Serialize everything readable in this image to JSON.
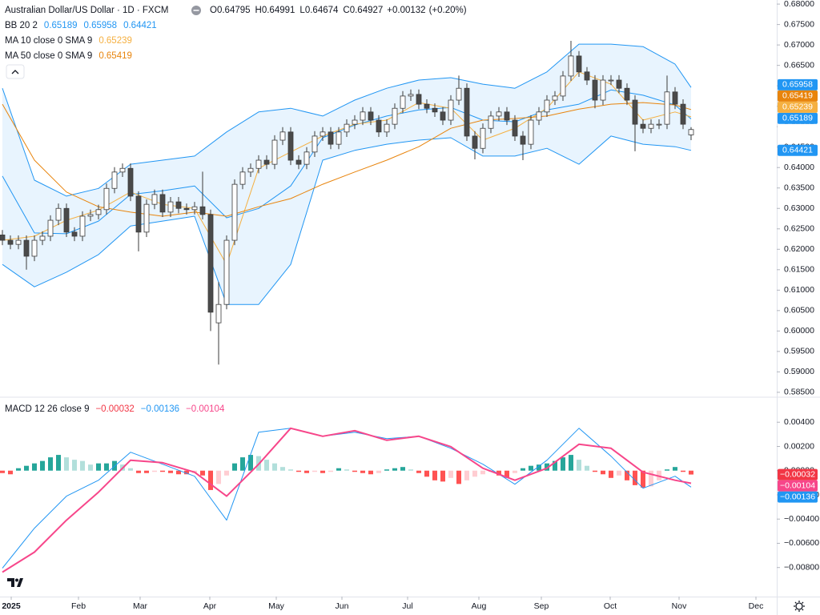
{
  "chart_data": [
    {
      "type": "candlestick",
      "title": "Australian Dollar/US Dollar · 1D · FXCM",
      "quote": [
        {
          "name": "O",
          "value": 0.64795
        },
        {
          "name": "H",
          "value": 0.64991
        },
        {
          "name": "L",
          "value": 0.64674
        },
        {
          "name": "C",
          "value": 0.64927
        }
      ],
      "change": {
        "value": 0.00132,
        "label": "+0.00132"
      },
      "change_pct": {
        "value": 0.2,
        "label": "(+0.20%)"
      },
      "up_color": "#ffffff",
      "down_color": "#4a4a4a",
      "wick_color": "#3b3b3b",
      "open": [
        0.6235,
        0.6222,
        0.6212,
        0.6222,
        0.6183,
        0.6222,
        0.6232,
        0.6271,
        0.63,
        0.6242,
        0.6232,
        0.6281,
        0.6285,
        0.6297,
        0.6349,
        0.6389,
        0.6398,
        0.633,
        0.6242,
        0.631,
        0.6334,
        0.6291,
        0.6316,
        0.63,
        0.6297,
        0.6304,
        0.6285,
        0.602,
        0.6065,
        0.6222,
        0.6359,
        0.6389,
        0.6398,
        0.6418,
        0.6408,
        0.6467,
        0.6487,
        0.6418,
        0.6408,
        0.6438,
        0.6477,
        0.6487,
        0.6457,
        0.6487,
        0.6506,
        0.6516,
        0.6536,
        0.6516,
        0.6487,
        0.6506,
        0.6545,
        0.6575,
        0.6579,
        0.6555,
        0.6545,
        0.6536,
        0.6516,
        0.6565,
        0.6594,
        0.6477,
        0.6447,
        0.6496,
        0.6526,
        0.6536,
        0.6516,
        0.6477,
        0.6457,
        0.6516,
        0.6536,
        0.6565,
        0.6575,
        0.6624,
        0.6673,
        0.6634,
        0.6614,
        0.6565,
        0.6614,
        0.6614,
        0.6594,
        0.6565,
        0.6506,
        0.6496,
        0.6506,
        0.6506,
        0.6585,
        0.6555,
        0.648
      ],
      "high": [
        0.6247,
        0.6234,
        0.6234,
        0.6234,
        0.6234,
        0.6244,
        0.6283,
        0.6312,
        0.6312,
        0.6254,
        0.6293,
        0.6297,
        0.6309,
        0.6361,
        0.6401,
        0.641,
        0.641,
        0.6342,
        0.6322,
        0.6346,
        0.6346,
        0.6328,
        0.6328,
        0.6312,
        0.6316,
        0.639,
        0.6297,
        0.612,
        0.6234,
        0.6371,
        0.6401,
        0.641,
        0.643,
        0.643,
        0.6479,
        0.6499,
        0.6499,
        0.643,
        0.645,
        0.6489,
        0.6499,
        0.6499,
        0.6499,
        0.6518,
        0.6528,
        0.6548,
        0.6548,
        0.6528,
        0.6518,
        0.6557,
        0.6587,
        0.6591,
        0.6591,
        0.6567,
        0.6557,
        0.6548,
        0.6577,
        0.6625,
        0.6606,
        0.6489,
        0.6508,
        0.6538,
        0.6548,
        0.6548,
        0.6528,
        0.6489,
        0.6528,
        0.6548,
        0.6577,
        0.6587,
        0.6636,
        0.671,
        0.6685,
        0.6646,
        0.6626,
        0.6626,
        0.6626,
        0.6626,
        0.6606,
        0.6577,
        0.6518,
        0.6518,
        0.6518,
        0.6625,
        0.6597,
        0.6567,
        0.6499
      ],
      "low": [
        0.621,
        0.62,
        0.62,
        0.615,
        0.6171,
        0.621,
        0.622,
        0.6259,
        0.623,
        0.622,
        0.622,
        0.6269,
        0.6273,
        0.6285,
        0.6337,
        0.6377,
        0.6318,
        0.6195,
        0.623,
        0.6298,
        0.6279,
        0.6279,
        0.6288,
        0.6285,
        0.6285,
        0.6273,
        0.6,
        0.5918,
        0.6053,
        0.621,
        0.6347,
        0.6377,
        0.6386,
        0.6396,
        0.6396,
        0.6455,
        0.6406,
        0.6396,
        0.6396,
        0.6426,
        0.6465,
        0.6445,
        0.6445,
        0.6475,
        0.6494,
        0.6504,
        0.6504,
        0.6475,
        0.6475,
        0.6494,
        0.6533,
        0.6563,
        0.6543,
        0.6533,
        0.6524,
        0.6504,
        0.6504,
        0.6553,
        0.6465,
        0.642,
        0.6435,
        0.6484,
        0.6514,
        0.6504,
        0.6465,
        0.6418,
        0.6445,
        0.6504,
        0.6524,
        0.6553,
        0.6563,
        0.6612,
        0.6622,
        0.6602,
        0.6545,
        0.6553,
        0.6602,
        0.6582,
        0.6553,
        0.644,
        0.6484,
        0.6484,
        0.6494,
        0.6494,
        0.6543,
        0.6494,
        0.6467
      ],
      "close": [
        0.6222,
        0.6212,
        0.6222,
        0.6183,
        0.6222,
        0.6232,
        0.6271,
        0.63,
        0.6242,
        0.6232,
        0.6281,
        0.6285,
        0.6297,
        0.6349,
        0.6389,
        0.6398,
        0.633,
        0.6242,
        0.631,
        0.6334,
        0.6291,
        0.6316,
        0.63,
        0.6297,
        0.6304,
        0.6285,
        0.6046,
        0.6065,
        0.6222,
        0.6359,
        0.6389,
        0.6398,
        0.6418,
        0.6408,
        0.6467,
        0.6487,
        0.6418,
        0.6408,
        0.6438,
        0.6477,
        0.6487,
        0.6457,
        0.6487,
        0.6506,
        0.6516,
        0.6536,
        0.6516,
        0.6487,
        0.6506,
        0.6545,
        0.6575,
        0.6579,
        0.6555,
        0.6545,
        0.6536,
        0.6516,
        0.6565,
        0.6594,
        0.6477,
        0.6447,
        0.6496,
        0.6526,
        0.6536,
        0.6516,
        0.6477,
        0.6457,
        0.6516,
        0.6536,
        0.6565,
        0.6575,
        0.6624,
        0.6673,
        0.6634,
        0.6614,
        0.6565,
        0.6614,
        0.6614,
        0.6594,
        0.6565,
        0.6506,
        0.6496,
        0.6506,
        0.6506,
        0.6585,
        0.6555,
        0.6506,
        0.6493
      ],
      "line_x": [
        0,
        4,
        8,
        12,
        16,
        20,
        24,
        28,
        32,
        36,
        40,
        44,
        48,
        52,
        56,
        60,
        64,
        68,
        72,
        76,
        80,
        84,
        86
      ],
      "studies": [
        {
          "label": "BB 20 2",
          "fill": "#2196f3",
          "lines": [
            {
              "color": "#2196f3",
              "values": [
                0.6379,
                0.624,
                0.6238,
                0.6269,
                0.6334,
                0.6343,
                0.6355,
                0.6277,
                0.63,
                0.6355,
                0.6473,
                0.6504,
                0.6526,
                0.6541,
                0.6547,
                0.6516,
                0.6512,
                0.6541,
                0.6555,
                0.659,
                0.6577,
                0.6553,
                0.6519
              ]
            },
            {
              "color": "#2196f3",
              "values": [
                0.6594,
                0.6369,
                0.633,
                0.6349,
                0.6408,
                0.6418,
                0.6428,
                0.6487,
                0.6536,
                0.6545,
                0.6526,
                0.6565,
                0.6594,
                0.6614,
                0.662,
                0.6604,
                0.6594,
                0.6634,
                0.6702,
                0.6702,
                0.6696,
                0.6653,
                0.6596
              ]
            },
            {
              "color": "#2196f3",
              "values": [
                0.6163,
                0.6108,
                0.6144,
                0.6187,
                0.6257,
                0.6269,
                0.6281,
                0.6065,
                0.6065,
                0.6163,
                0.6418,
                0.6442,
                0.6457,
                0.6467,
                0.6473,
                0.6428,
                0.6428,
                0.6447,
                0.6408,
                0.6477,
                0.6457,
                0.6451,
                0.6442
              ]
            }
          ],
          "last": [
            0.65189,
            0.65958,
            0.64421
          ]
        },
        {
          "label": "MA 10 close 0 SMA 9",
          "lines": [
            {
              "color": "#f5b041",
              "values": [
                0.6222,
                0.6232,
                0.6271,
                0.6296,
                0.634,
                0.631,
                0.63,
                0.6163,
                0.6398,
                0.6438,
                0.6477,
                0.6506,
                0.6516,
                0.6559,
                0.6545,
                0.6467,
                0.6496,
                0.6545,
                0.6634,
                0.6604,
                0.6516,
                0.6536,
                0.6524
              ]
            }
          ],
          "last": [
            0.65239
          ]
        },
        {
          "label": "MA 50 close 0 SMA 9",
          "lines": [
            {
              "color": "#e8840c",
              "values": [
                0.6555,
                0.6418,
                0.634,
                0.6304,
                0.6291,
                0.6281,
                0.6291,
                0.6281,
                0.6304,
                0.6324,
                0.6359,
                0.6389,
                0.6418,
                0.6451,
                0.6496,
                0.6516,
                0.652,
                0.6526,
                0.6543,
                0.6555,
                0.6559,
                0.6553,
                0.6542
              ]
            }
          ],
          "last": [
            0.65419
          ]
        }
      ],
      "xlim": [
        -0.3,
        96.7
      ],
      "xticks": [
        {
          "value": 1.1,
          "label": "2025"
        },
        {
          "value": 9.5,
          "label": "Feb"
        },
        {
          "value": 17.2,
          "label": "Mar"
        },
        {
          "value": 25.9,
          "label": "Apr"
        },
        {
          "value": 34.2,
          "label": "May"
        },
        {
          "value": 42.4,
          "label": "Jun"
        },
        {
          "value": 50.6,
          "label": "Jul"
        },
        {
          "value": 59.5,
          "label": "Aug"
        },
        {
          "value": 67.3,
          "label": "Sep"
        },
        {
          "value": 75.9,
          "label": "Oct"
        },
        {
          "value": 84.5,
          "label": "Nov"
        },
        {
          "value": 94.1,
          "label": "Dec"
        }
      ],
      "ylim": [
        0.584,
        0.681
      ],
      "yticks": [
        {
          "value": 0.585,
          "label": "0.58500"
        },
        {
          "value": 0.59,
          "label": "0.59000"
        },
        {
          "value": 0.595,
          "label": "0.59500"
        },
        {
          "value": 0.6,
          "label": "0.60000"
        },
        {
          "value": 0.605,
          "label": "0.60500"
        },
        {
          "value": 0.61,
          "label": "0.61000"
        },
        {
          "value": 0.615,
          "label": "0.61500"
        },
        {
          "value": 0.62,
          "label": "0.62000"
        },
        {
          "value": 0.625,
          "label": "0.62500"
        },
        {
          "value": 0.63,
          "label": "0.63000"
        },
        {
          "value": 0.635,
          "label": "0.63500"
        },
        {
          "value": 0.64,
          "label": "0.64000"
        },
        {
          "value": 0.645,
          "label": "0.64500"
        },
        {
          "value": 0.65,
          "label": "0.65000"
        },
        {
          "value": 0.655,
          "label": "0.65500"
        },
        {
          "value": 0.66,
          "label": "0.66000"
        },
        {
          "value": 0.665,
          "label": "0.66500"
        },
        {
          "value": 0.67,
          "label": "0.67000"
        },
        {
          "value": 0.675,
          "label": "0.67500"
        },
        {
          "value": 0.68,
          "label": "0.68000"
        }
      ],
      "grid": false
    },
    {
      "type": "macd",
      "label": "MACD 12 26 close 9",
      "histogram": {
        "colors": {
          "pos_rising": "#26a69a",
          "pos_falling": "#b2dfdb",
          "neg_rising": "#ffcdd2",
          "neg_falling": "#ff5252"
        },
        "values": [
          -0.0002,
          -0.0003,
          0.0002,
          0.0004,
          0.0006,
          0.0008,
          0.0011,
          0.0013,
          0.0011,
          0.0009,
          0.0008,
          0.0005,
          0.0006,
          0.0006,
          0.0008,
          0.0005,
          0.0002,
          -0.0002,
          -0.0002,
          -0.0001,
          -0.0001,
          -0.0002,
          -0.0003,
          -0.0003,
          -0.0002,
          -0.0004,
          -0.0016,
          -0.0011,
          -0.0004,
          0.0006,
          0.0011,
          0.0013,
          0.0012,
          0.0009,
          0.0006,
          0.0003,
          0.0001,
          -0.0001,
          -0.0002,
          -0.0001,
          -0.0002,
          -0.0001,
          0.0002,
          0.0001,
          -0.0001,
          -0.0002,
          -0.0003,
          -0.0002,
          0.0001,
          0.0002,
          0.0003,
          0.0001,
          -0.0002,
          -0.0005,
          -0.0008,
          -0.0009,
          -0.0006,
          -0.0011,
          -0.0008,
          -0.0005,
          -0.0003,
          -0.0001,
          -0.0004,
          -0.0006,
          -0.0002,
          0.0002,
          0.0004,
          0.0005,
          0.0006,
          0.0008,
          0.0011,
          0.0013,
          0.0009,
          0.0004,
          -0.0001,
          -0.0003,
          -0.0006,
          -0.0004,
          -0.0008,
          -0.0012,
          -0.0014,
          -0.0013,
          -0.0008,
          0.0001,
          0.0003,
          -0.0001,
          -0.00032
        ]
      },
      "macd": {
        "color": "#2196f3",
        "values": [
          -0.00805,
          -0.00475,
          -0.00211,
          -0.00079,
          0.00152,
          0.00053,
          -0.00046,
          -0.00409,
          0.00317,
          0.0035,
          0.00284,
          0.00317,
          0.00264,
          0.00284,
          0.00185,
          0.00053,
          -0.00112,
          0.00086,
          0.0035,
          0.00119,
          -0.00145,
          -0.00046,
          -0.00136
        ]
      },
      "signal": {
        "color": "#f7468a",
        "values": [
          -0.00838,
          -0.00673,
          -0.00409,
          -0.00178,
          0.00086,
          0.00066,
          -0.00013,
          -0.00211,
          0.00053,
          0.0035,
          0.00284,
          0.0033,
          0.00251,
          0.00284,
          0.00198,
          0.0002,
          -0.00079,
          0.0002,
          0.00218,
          0.00185,
          -0.00013,
          -0.00079,
          -0.00104
        ]
      },
      "last": [
        {
          "value": -0.00032,
          "label": "−0.00032",
          "color": "#f23645"
        },
        {
          "value": -0.00136,
          "label": "−0.00136",
          "color": "#2196f3"
        },
        {
          "value": -0.00104,
          "label": "−0.00104",
          "color": "#f7468a"
        }
      ],
      "ylim": [
        -0.0104,
        0.006
      ],
      "yticks": [
        {
          "value": 0.004,
          "label": "0.00400"
        },
        {
          "value": 0.002,
          "label": "0.00200"
        },
        {
          "value": 0,
          "label": "0.00000"
        },
        {
          "value": -0.002,
          "label": "−0.00200"
        },
        {
          "value": -0.004,
          "label": "−0.00400"
        },
        {
          "value": -0.006,
          "label": "−0.00600"
        },
        {
          "value": -0.008,
          "label": "−0.00800"
        }
      ]
    }
  ]
}
